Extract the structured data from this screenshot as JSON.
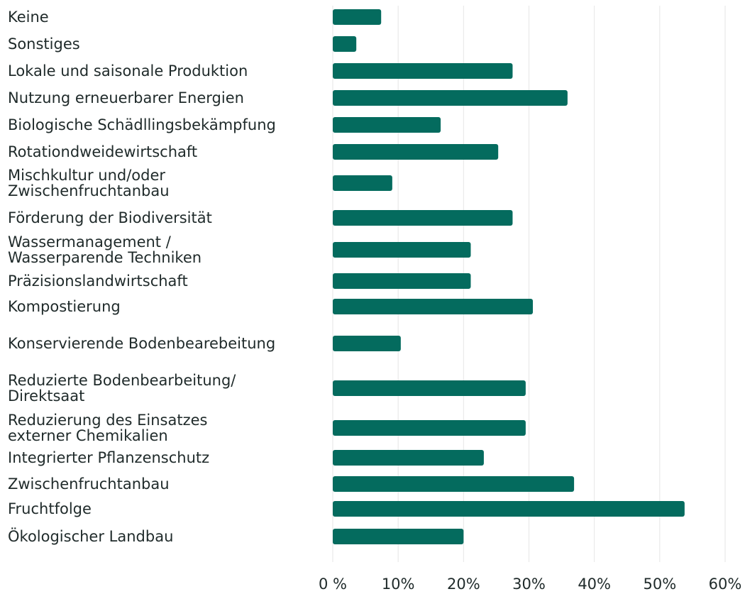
{
  "chart_data": {
    "type": "bar",
    "orientation": "horizontal",
    "categories": [
      "Keine",
      "Sonstiges",
      "Lokale und saisonale Produktion",
      "Nutzung erneuerbarer Energien",
      "Biologische Schädllingsbekämpfung",
      "Rotationdweidewirtschaft",
      "Mischkultur und/oder\nZwischenfruchtanbau",
      "Förderung der Biodiversität",
      "Wassermanagement /\nWasserparende Techniken",
      "Präzisionslandwirtschaft",
      "Kompostierung",
      "Konservierende Bodenbearebeitung",
      "Reduzierte Bodenbearbeitung/\nDirektsaat",
      "Reduzierung des Einsatzes\nexterner Chemikalien",
      "Integrierter Pflanzenschutz",
      "Zwischenfruchtanbau",
      "Fruchtfolge",
      "Ökologischer Landbau"
    ],
    "values": [
      7.4,
      3.6,
      27.5,
      35.9,
      16.5,
      25.3,
      9.1,
      27.5,
      21.1,
      21.1,
      30.6,
      10.4,
      29.5,
      29.5,
      23.1,
      36.9,
      53.8,
      20.0
    ],
    "color": "#046b5e",
    "xlim": [
      0,
      60
    ],
    "xticks": [
      {
        "value": 0,
        "label": "0 %"
      },
      {
        "value": 10,
        "label": "10%"
      },
      {
        "value": 20,
        "label": "20%"
      },
      {
        "value": 30,
        "label": "30%"
      },
      {
        "value": 40,
        "label": "40%"
      },
      {
        "value": 50,
        "label": "50%"
      },
      {
        "value": 60,
        "label": "60%"
      }
    ],
    "grid": true
  }
}
